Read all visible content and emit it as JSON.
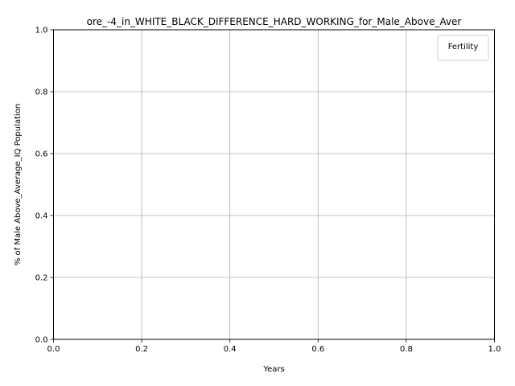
{
  "chart_data": {
    "type": "line",
    "title": "ore_-4_in_WHITE_BLACK_DIFFERENCE_HARD_WORKING_for_Male_Above_Aver",
    "xlabel": "Years",
    "ylabel": "% of Male Above_Average_IQ Population",
    "xlim": [
      0,
      1
    ],
    "ylim": [
      0,
      1
    ],
    "x_ticks": [
      "0.0",
      "0.2",
      "0.4",
      "0.6",
      "0.8",
      "1.0"
    ],
    "y_ticks": [
      "0.0",
      "0.2",
      "0.4",
      "0.6",
      "0.8",
      "1.0"
    ],
    "grid": true,
    "legend": {
      "title": "Fertility",
      "placement": "top-right",
      "entries": []
    },
    "series": []
  }
}
